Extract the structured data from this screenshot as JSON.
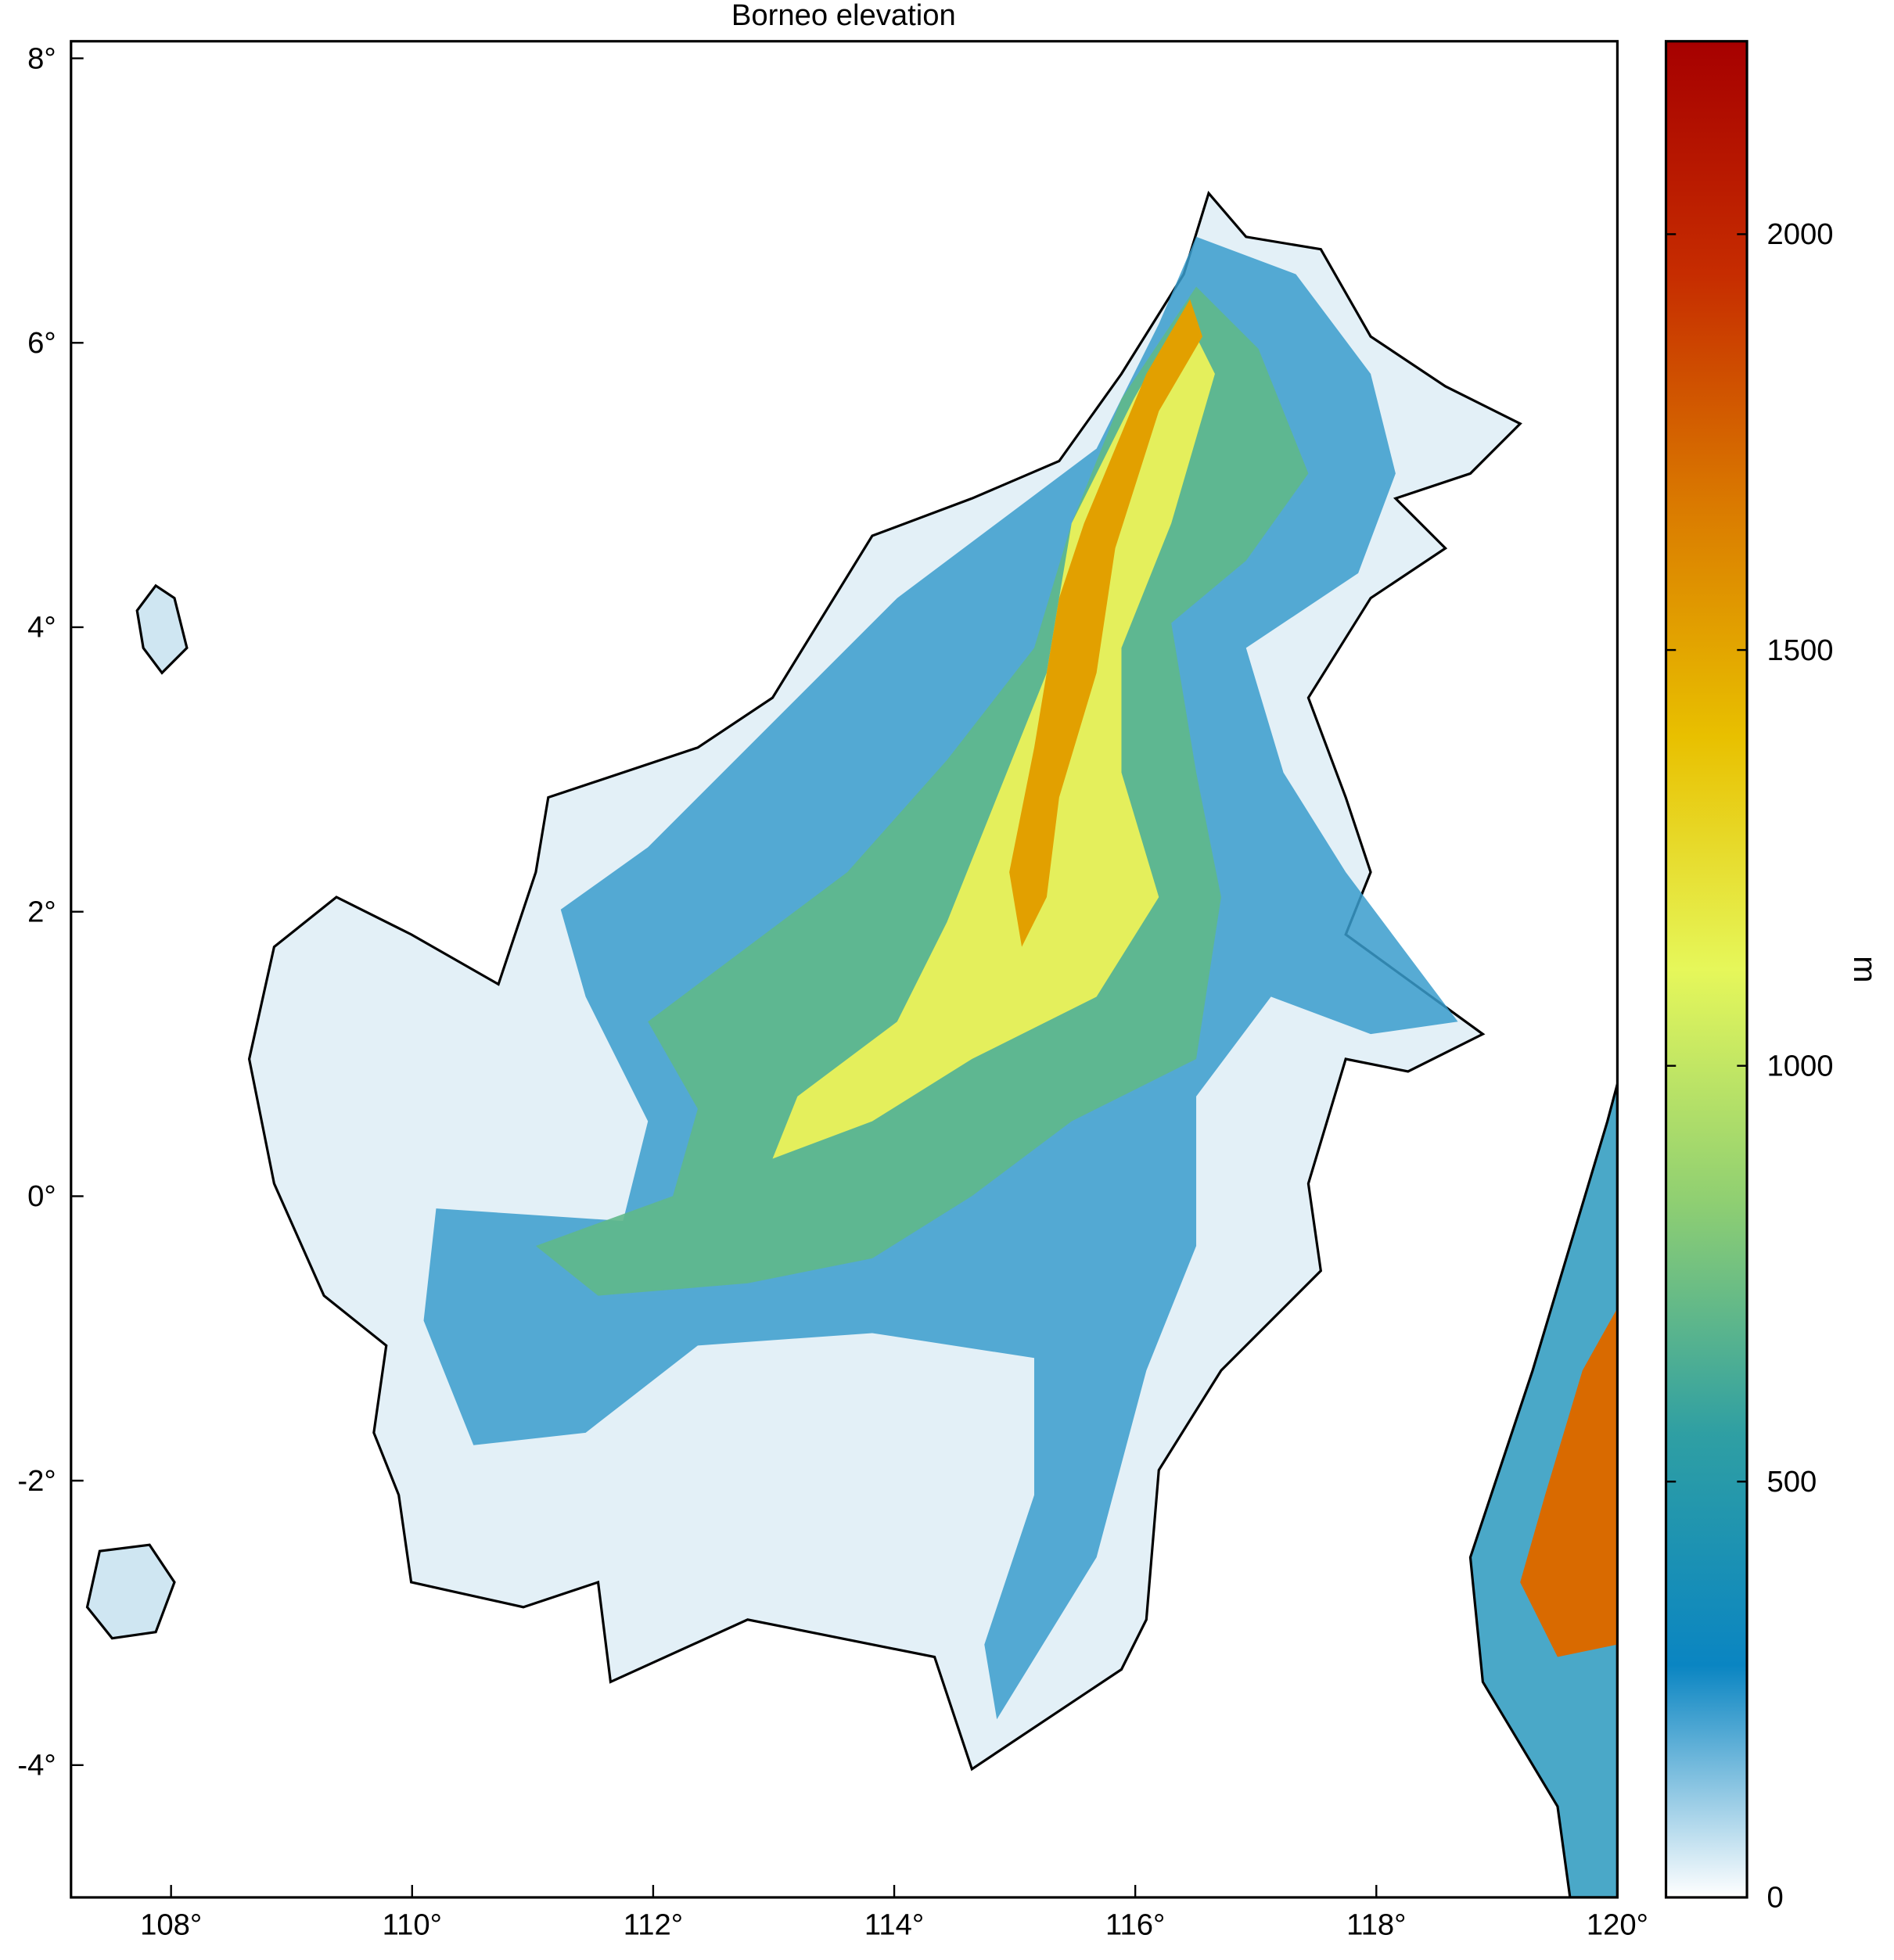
{
  "chart_data": {
    "type": "heatmap-map",
    "title": "Borneo elevation",
    "colorbar_label": "m",
    "xlim": [
      107.17,
      120
    ],
    "ylim": [
      -4.93,
      8.12
    ],
    "xticks": [
      {
        "value": 108,
        "label": "108°"
      },
      {
        "value": 110,
        "label": "110°"
      },
      {
        "value": 112,
        "label": "112°"
      },
      {
        "value": 114,
        "label": "114°"
      },
      {
        "value": 116,
        "label": "116°"
      },
      {
        "value": 118,
        "label": "118°"
      },
      {
        "value": 120,
        "label": "120°"
      }
    ],
    "yticks": [
      {
        "value": 8,
        "label": "8°"
      },
      {
        "value": 6,
        "label": "6°"
      },
      {
        "value": 4,
        "label": "4°"
      },
      {
        "value": 2,
        "label": "2°"
      },
      {
        "value": 0,
        "label": "0°"
      },
      {
        "value": -2,
        "label": "-2°"
      },
      {
        "value": -4,
        "label": "-4°"
      }
    ],
    "clim": [
      0,
      2232
    ],
    "cticks": [
      0,
      500,
      1000,
      1500,
      2000
    ],
    "colormap": [
      "#ffffff",
      "#0a85c2",
      "#2f9fa3",
      "#8fcf72",
      "#e6f75a",
      "#e8c000",
      "#da7a00",
      "#c62c00",
      "#a60000"
    ]
  }
}
